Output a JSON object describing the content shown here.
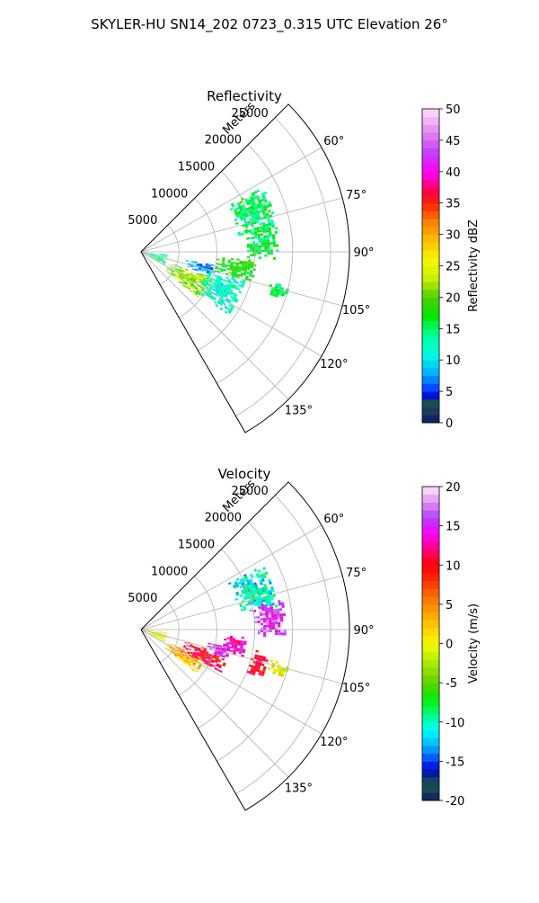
{
  "suptitle": "SKYLER-HU  SN14_202  0723_0.315 UTC Elevation 26°",
  "chart_data": [
    {
      "type": "polar-sector",
      "title": "Reflectivity",
      "range_label": "Meters",
      "theta_ticks": [
        "60°",
        "75°",
        "90°",
        "105°",
        "120°",
        "135°"
      ],
      "theta_values": [
        60,
        75,
        90,
        105,
        120,
        135
      ],
      "theta_range": [
        45,
        150
      ],
      "r_ticks": [
        "5000",
        "10000",
        "15000",
        "20000",
        "25000"
      ],
      "r_values": [
        5000,
        10000,
        15000,
        20000,
        25000
      ],
      "r_max": 27500,
      "grid": true,
      "colorbar": {
        "label": "Reflectivity dBZ",
        "ticks": [
          "0",
          "5",
          "10",
          "15",
          "20",
          "25",
          "30",
          "35",
          "40",
          "45",
          "50"
        ],
        "tick_values": [
          0,
          5,
          10,
          15,
          20,
          25,
          30,
          35,
          40,
          45,
          50
        ],
        "range": [
          0,
          50
        ]
      },
      "echo_regions": [
        {
          "theta": [
            62,
            80
          ],
          "r": [
            13000,
            18000
          ],
          "value": 15
        },
        {
          "theta": [
            78,
            93
          ],
          "r": [
            14000,
            18000
          ],
          "value": 16
        },
        {
          "theta": [
            94,
            104
          ],
          "r": [
            10000,
            15000
          ],
          "value": 18
        },
        {
          "theta": [
            110,
            128
          ],
          "r": [
            4000,
            10000
          ],
          "value": 22
        },
        {
          "theta": [
            105,
            125
          ],
          "r": [
            9000,
            14000
          ],
          "value": 12
        },
        {
          "theta": [
            100,
            108
          ],
          "r": [
            6000,
            10000
          ],
          "value": 8
        },
        {
          "theta": [
            95,
            120
          ],
          "r": [
            500,
            3500
          ],
          "value": 14
        },
        {
          "theta": [
            103,
            108
          ],
          "r": [
            17500,
            20000
          ],
          "value": 15
        }
      ]
    },
    {
      "type": "polar-sector",
      "title": "Velocity",
      "range_label": "Meters",
      "theta_ticks": [
        "60°",
        "75°",
        "90°",
        "105°",
        "120°",
        "135°"
      ],
      "theta_values": [
        60,
        75,
        90,
        105,
        120,
        135
      ],
      "theta_range": [
        45,
        150
      ],
      "r_ticks": [
        "5000",
        "10000",
        "15000",
        "20000",
        "25000"
      ],
      "r_values": [
        5000,
        10000,
        15000,
        20000,
        25000
      ],
      "r_max": 27500,
      "grid": true,
      "colorbar": {
        "label": "Velocity (m/s)",
        "ticks": [
          "-20",
          "-15",
          "-10",
          "-5",
          "0",
          "5",
          "10",
          "15",
          "20"
        ],
        "tick_values": [
          -20,
          -15,
          -10,
          -5,
          0,
          5,
          10,
          15,
          20
        ],
        "range": [
          -20,
          20
        ]
      },
      "echo_regions": [
        {
          "theta": [
            62,
            80
          ],
          "r": [
            13000,
            18000
          ],
          "value": -11
        },
        {
          "theta": [
            78,
            93
          ],
          "r": [
            15000,
            19000
          ],
          "value": 15
        },
        {
          "theta": [
            94,
            104
          ],
          "r": [
            11000,
            14000
          ],
          "value": 13
        },
        {
          "theta": [
            115,
            128
          ],
          "r": [
            4000,
            9000
          ],
          "value": 3
        },
        {
          "theta": [
            105,
            118
          ],
          "r": [
            6000,
            12000
          ],
          "value": 10
        },
        {
          "theta": [
            100,
            108
          ],
          "r": [
            9000,
            12000
          ],
          "value": 15
        },
        {
          "theta": [
            100,
            112
          ],
          "r": [
            15000,
            17000
          ],
          "value": 10
        },
        {
          "theta": [
            103,
            108
          ],
          "r": [
            17500,
            20000
          ],
          "value": 0
        },
        {
          "theta": [
            95,
            120
          ],
          "r": [
            500,
            3500
          ],
          "value": 0
        }
      ]
    }
  ]
}
